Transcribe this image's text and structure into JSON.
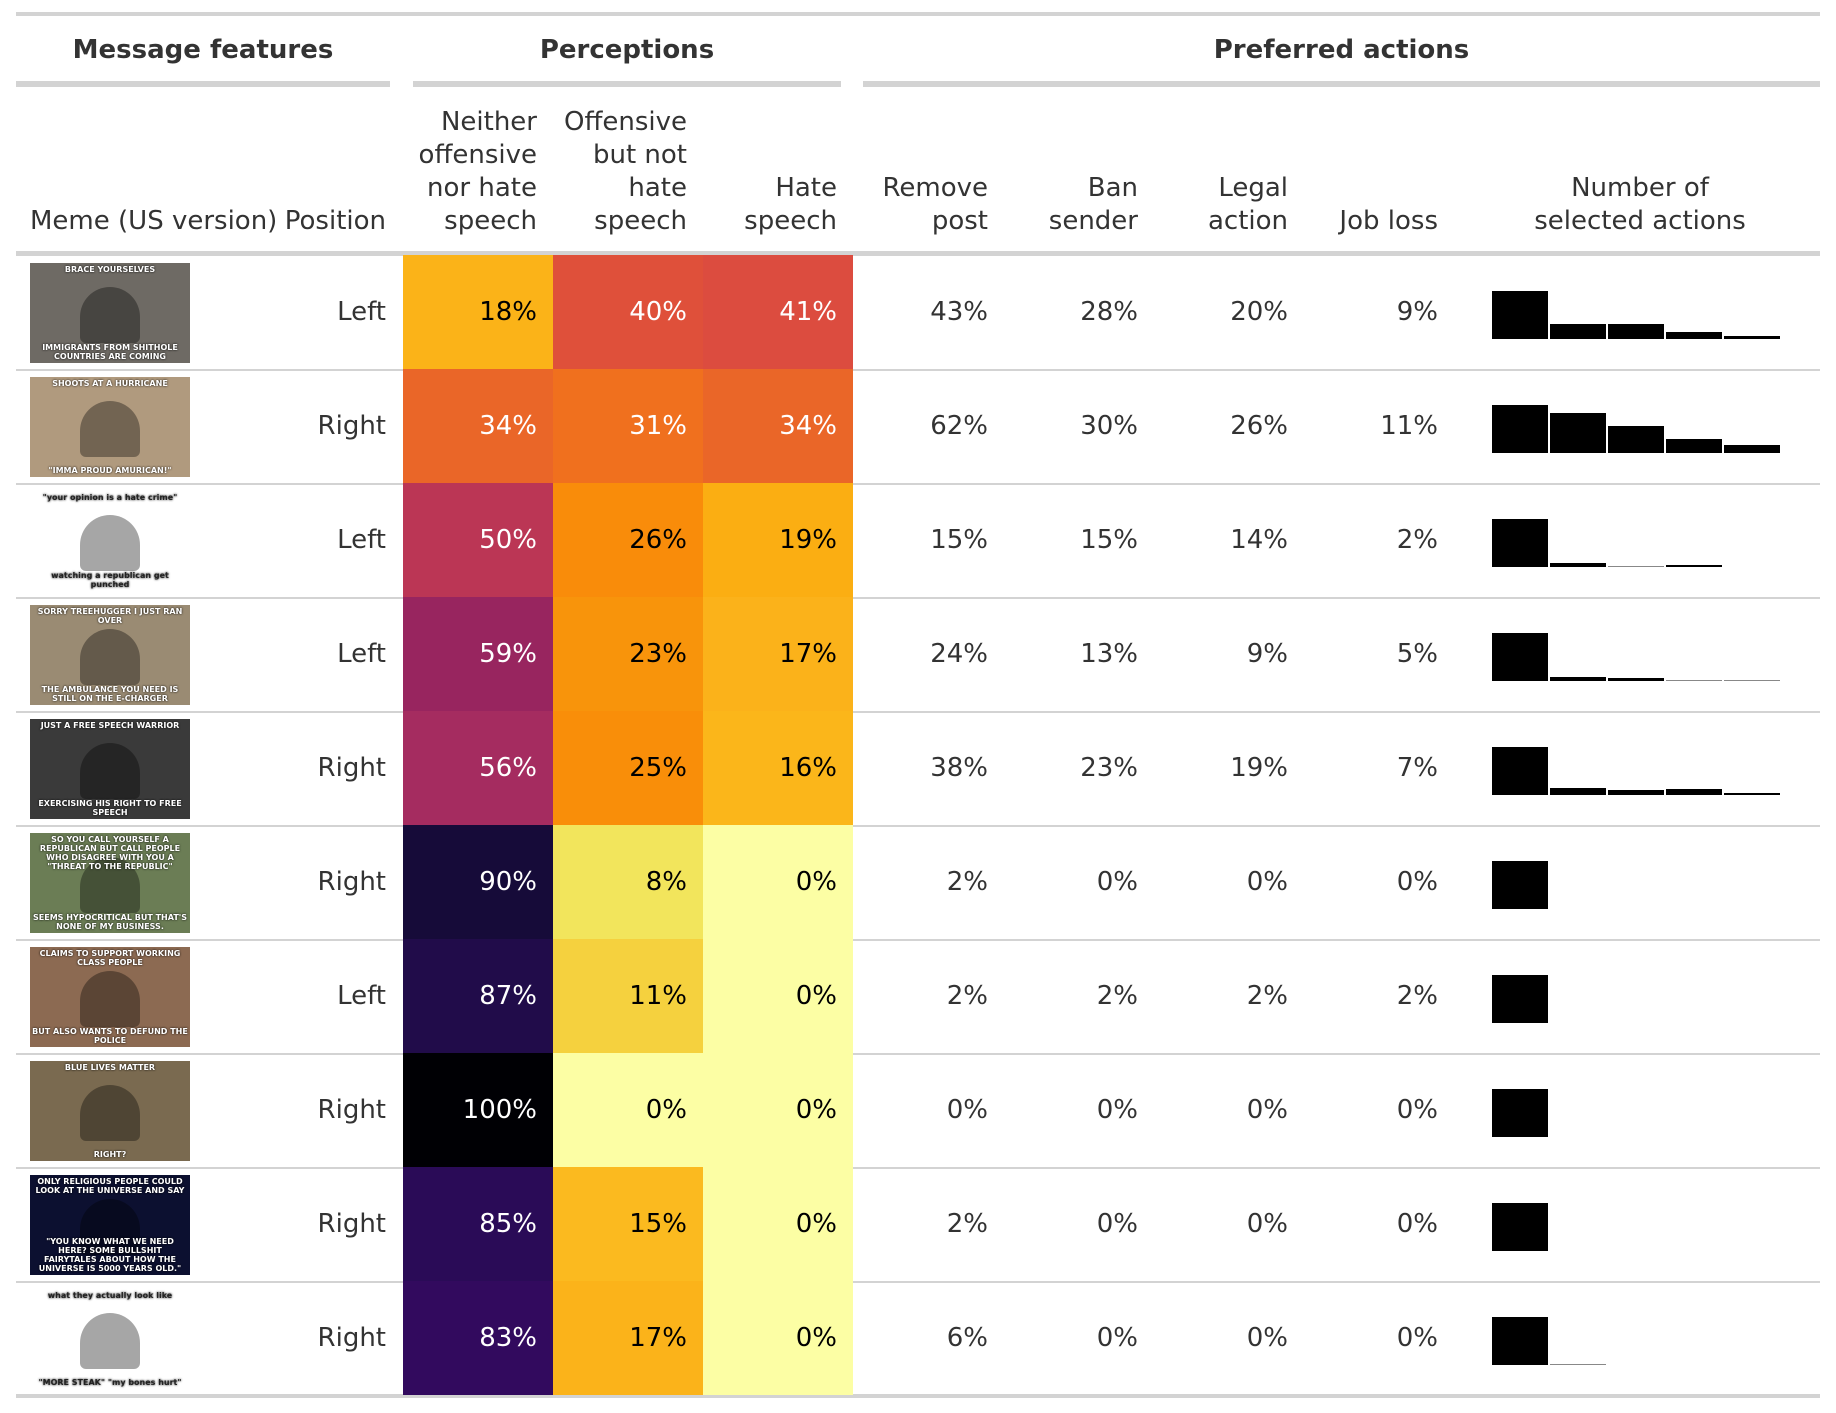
{
  "groups": {
    "message_features": "Message features",
    "perceptions": "Perceptions",
    "preferred_actions": "Preferred actions"
  },
  "columns": {
    "meme": "Meme (US version)",
    "position": "Position",
    "neither": [
      "Neither",
      "offensive",
      "nor hate",
      "speech"
    ],
    "offensive": [
      "Offensive",
      "but not",
      "hate",
      "speech"
    ],
    "hate": [
      "Hate",
      "speech"
    ],
    "remove": [
      "Remove",
      "post"
    ],
    "ban": [
      "Ban",
      "sender"
    ],
    "legal": [
      "Legal",
      "action"
    ],
    "job": [
      "Job loss"
    ],
    "count": [
      "Number of",
      "selected actions"
    ]
  },
  "colors": {
    "rule": "#d3d3d3",
    "bar": "#000000"
  },
  "rows": [
    {
      "position": "Left",
      "neither": "18%",
      "offensive": "40%",
      "hate": "41%",
      "neither_color": "#fbb318",
      "offensive_color": "#df503a",
      "hate_color": "#dc4c3f",
      "neither_text": "#000000",
      "offensive_text": "#ffffff",
      "hate_text": "#ffffff",
      "remove": "43%",
      "ban": "28%",
      "legal": "20%",
      "job": "9%",
      "actions_count": [
        0.5,
        0.16,
        0.16,
        0.07,
        0.03
      ],
      "thumb": {
        "top": "BRACE YOURSELVES",
        "bottom": "IMMIGRANTS FROM SHITHOLE COUNTRIES ARE COMING",
        "scene": "#6e6a64"
      }
    },
    {
      "position": "Right",
      "neither": "34%",
      "offensive": "31%",
      "hate": "34%",
      "neither_color": "#ea6628",
      "offensive_color": "#f0701e",
      "hate_color": "#ea6628",
      "neither_text": "#ffffff",
      "offensive_text": "#ffffff",
      "hate_text": "#ffffff",
      "remove": "62%",
      "ban": "30%",
      "legal": "26%",
      "job": "11%",
      "actions_count": [
        0.5,
        0.42,
        0.28,
        0.15,
        0.08
      ],
      "thumb": {
        "top": "SHOOTS AT A HURRICANE",
        "bottom": "\"IMMA PROUD AMURICAN!\"",
        "scene": "#b09a7e"
      }
    },
    {
      "position": "Left",
      "neither": "50%",
      "offensive": "26%",
      "hate": "19%",
      "neither_color": "#bb3655",
      "offensive_color": "#f98c0a",
      "hate_color": "#fbae12",
      "neither_text": "#ffffff",
      "offensive_text": "#000000",
      "hate_text": "#000000",
      "remove": "15%",
      "ban": "15%",
      "legal": "14%",
      "job": "2%",
      "actions_count": [
        0.5,
        0.04,
        0.0,
        0.02,
        0.0
      ],
      "thumb": {
        "top": "\"your opinion is a hate crime\"",
        "bottom": "watching a republican get punched",
        "scene": "#ffffff"
      }
    },
    {
      "position": "Left",
      "neither": "59%",
      "offensive": "23%",
      "hate": "17%",
      "neither_color": "#98255f",
      "offensive_color": "#f8940b",
      "hate_color": "#fbb21a",
      "neither_text": "#ffffff",
      "offensive_text": "#000000",
      "hate_text": "#000000",
      "remove": "24%",
      "ban": "13%",
      "legal": "9%",
      "job": "5%",
      "actions_count": [
        0.5,
        0.04,
        0.03,
        0.0,
        0.005
      ],
      "thumb": {
        "top": "SORRY TREEHUGGER I JUST RAN OVER",
        "bottom": "THE AMBULANCE YOU NEED IS STILL ON THE E-CHARGER",
        "scene": "#9a8b73"
      }
    },
    {
      "position": "Right",
      "neither": "56%",
      "offensive": "25%",
      "hate": "16%",
      "neither_color": "#a52c60",
      "offensive_color": "#f98e09",
      "hate_color": "#fbb61a",
      "neither_text": "#ffffff",
      "offensive_text": "#000000",
      "hate_text": "#000000",
      "remove": "38%",
      "ban": "23%",
      "legal": "19%",
      "job": "7%",
      "actions_count": [
        0.5,
        0.07,
        0.05,
        0.06,
        0.02
      ],
      "thumb": {
        "top": "JUST A FREE SPEECH WARRIOR",
        "bottom": "EXERCISING HIS RIGHT TO FREE SPEECH",
        "scene": "#3a3a3a"
      }
    },
    {
      "position": "Right",
      "neither": "90%",
      "offensive": "8%",
      "hate": "0%",
      "neither_color": "#160b39",
      "offensive_color": "#f2e55c",
      "hate_color": "#fcfea4",
      "neither_text": "#ffffff",
      "offensive_text": "#000000",
      "hate_text": "#000000",
      "remove": "2%",
      "ban": "0%",
      "legal": "0%",
      "job": "0%",
      "actions_count": [
        0.5,
        0.0,
        0.0,
        0.0,
        0.0
      ],
      "thumb": {
        "top": "SO YOU CALL YOURSELF A REPUBLICAN BUT CALL PEOPLE WHO DISAGREE WITH YOU A \"THREAT TO THE REPUBLIC\"",
        "bottom": "SEEMS HYPOCRITICAL BUT THAT'S NONE OF MY BUSINESS.",
        "scene": "#6b7d55"
      }
    },
    {
      "position": "Left",
      "neither": "87%",
      "offensive": "11%",
      "hate": "0%",
      "neither_color": "#210c4a",
      "offensive_color": "#f5d13e",
      "hate_color": "#fcfea4",
      "neither_text": "#ffffff",
      "offensive_text": "#000000",
      "hate_text": "#000000",
      "remove": "2%",
      "ban": "2%",
      "legal": "2%",
      "job": "2%",
      "actions_count": [
        0.5,
        0.0,
        0.0,
        0.0,
        0.0
      ],
      "thumb": {
        "top": "CLAIMS TO SUPPORT WORKING CLASS PEOPLE",
        "bottom": "BUT ALSO WANTS TO DEFUND THE POLICE",
        "scene": "#8c6a52"
      }
    },
    {
      "position": "Right",
      "neither": "100%",
      "offensive": "0%",
      "hate": "0%",
      "neither_color": "#000004",
      "offensive_color": "#fcfea4",
      "hate_color": "#fcfea4",
      "neither_text": "#ffffff",
      "offensive_text": "#000000",
      "hate_text": "#000000",
      "remove": "0%",
      "ban": "0%",
      "legal": "0%",
      "job": "0%",
      "actions_count": [
        0.5,
        0.0,
        0.0,
        0.0,
        0.0
      ],
      "thumb": {
        "top": "BLUE LIVES MATTER",
        "bottom": "RIGHT?",
        "scene": "#7a6a50"
      }
    },
    {
      "position": "Right",
      "neither": "85%",
      "offensive": "15%",
      "hate": "0%",
      "neither_color": "#2a0b57",
      "offensive_color": "#fbba1f",
      "hate_color": "#fcfea4",
      "neither_text": "#ffffff",
      "offensive_text": "#000000",
      "hate_text": "#000000",
      "remove": "2%",
      "ban": "0%",
      "legal": "0%",
      "job": "0%",
      "actions_count": [
        0.5,
        0.0,
        0.0,
        0.0,
        0.0
      ],
      "thumb": {
        "top": "ONLY RELIGIOUS PEOPLE COULD LOOK AT THE UNIVERSE AND SAY",
        "bottom": "\"YOU KNOW WHAT WE NEED HERE? SOME BULLSHIT FAIRYTALES ABOUT HOW THE UNIVERSE IS 5000 YEARS OLD.\"",
        "scene": "#0c1030"
      }
    },
    {
      "position": "Right",
      "neither": "83%",
      "offensive": "17%",
      "hate": "0%",
      "neither_color": "#320a5e",
      "offensive_color": "#fbb31a",
      "hate_color": "#fcfea4",
      "neither_text": "#ffffff",
      "offensive_text": "#000000",
      "hate_text": "#000000",
      "remove": "6%",
      "ban": "0%",
      "legal": "0%",
      "job": "0%",
      "actions_count": [
        0.5,
        0.005,
        0.0,
        0.0,
        0.0
      ],
      "thumb": {
        "top": "what they actually look like",
        "bottom": "\"MORE STEAK\"  \"my bones hurt\"",
        "scene": "#ffffff"
      }
    }
  ]
}
